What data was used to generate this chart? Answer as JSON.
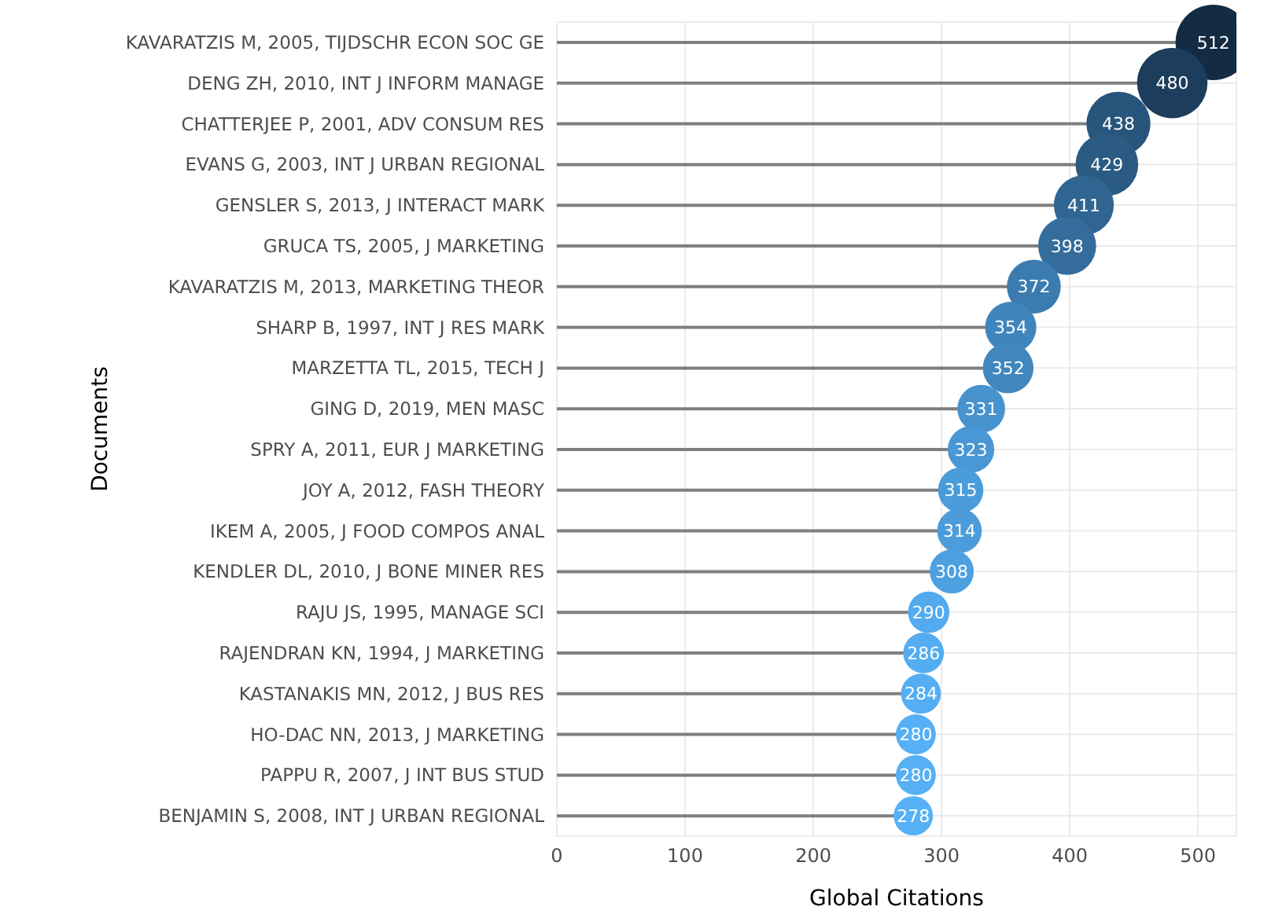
{
  "chart_data": {
    "type": "lollipop",
    "orientation": "horizontal",
    "xlabel": "Global Citations",
    "ylabel": "Documents",
    "categories": [
      "KAVARATZIS M, 2005, TIJDSCHR ECON SOC GE",
      "DENG ZH, 2010, INT J INFORM MANAGE",
      "CHATTERJEE P, 2001, ADV CONSUM RES",
      "EVANS G, 2003, INT J URBAN REGIONAL",
      "GENSLER S, 2013, J INTERACT MARK",
      "GRUCA TS, 2005, J MARKETING",
      "KAVARATZIS M, 2013, MARKETING THEOR",
      "SHARP B, 1997, INT J RES MARK",
      "MARZETTA TL, 2015, TECH J",
      "GING D, 2019, MEN MASC",
      "SPRY A, 2011, EUR J MARKETING",
      "JOY A, 2012, FASH THEORY",
      "IKEM A, 2005, J FOOD COMPOS ANAL",
      "KENDLER DL, 2010, J BONE MINER RES",
      "RAJU JS, 1995, MANAGE SCI",
      "RAJENDRAN KN, 1994, J MARKETING",
      "KASTANAKIS MN, 2012, J BUS RES",
      "HO-DAC NN, 2013, J MARKETING",
      "PAPPU R, 2007, J INT BUS STUD",
      "BENJAMIN S, 2008, INT J URBAN REGIONAL"
    ],
    "values": [
      512,
      480,
      438,
      429,
      411,
      398,
      372,
      354,
      352,
      331,
      323,
      315,
      314,
      308,
      290,
      286,
      284,
      280,
      280,
      278
    ],
    "colors": [
      "#132b43",
      "#1c3d5c",
      "#28557c",
      "#2b5b83",
      "#306591",
      "#346c9b",
      "#3b7baf",
      "#4085bc",
      "#4187be",
      "#4793ce",
      "#4997d4",
      "#4b9cdb",
      "#4c9cdb",
      "#4da0e0",
      "#53aaee",
      "#54acf1",
      "#54aef2",
      "#55b0f5",
      "#55b0f5",
      "#56b1f7"
    ],
    "sizes": [
      1,
      0.87,
      0.72,
      0.69,
      0.63,
      0.59,
      0.51,
      0.46,
      0.45,
      0.4,
      0.38,
      0.36,
      0.35,
      0.34,
      0.3,
      0.29,
      0.28,
      0.28,
      0.28,
      0.27
    ],
    "xlim": [
      0,
      530
    ],
    "xticks": [
      0,
      100,
      200,
      300,
      400,
      500
    ],
    "grid": true,
    "data_labels": true
  }
}
